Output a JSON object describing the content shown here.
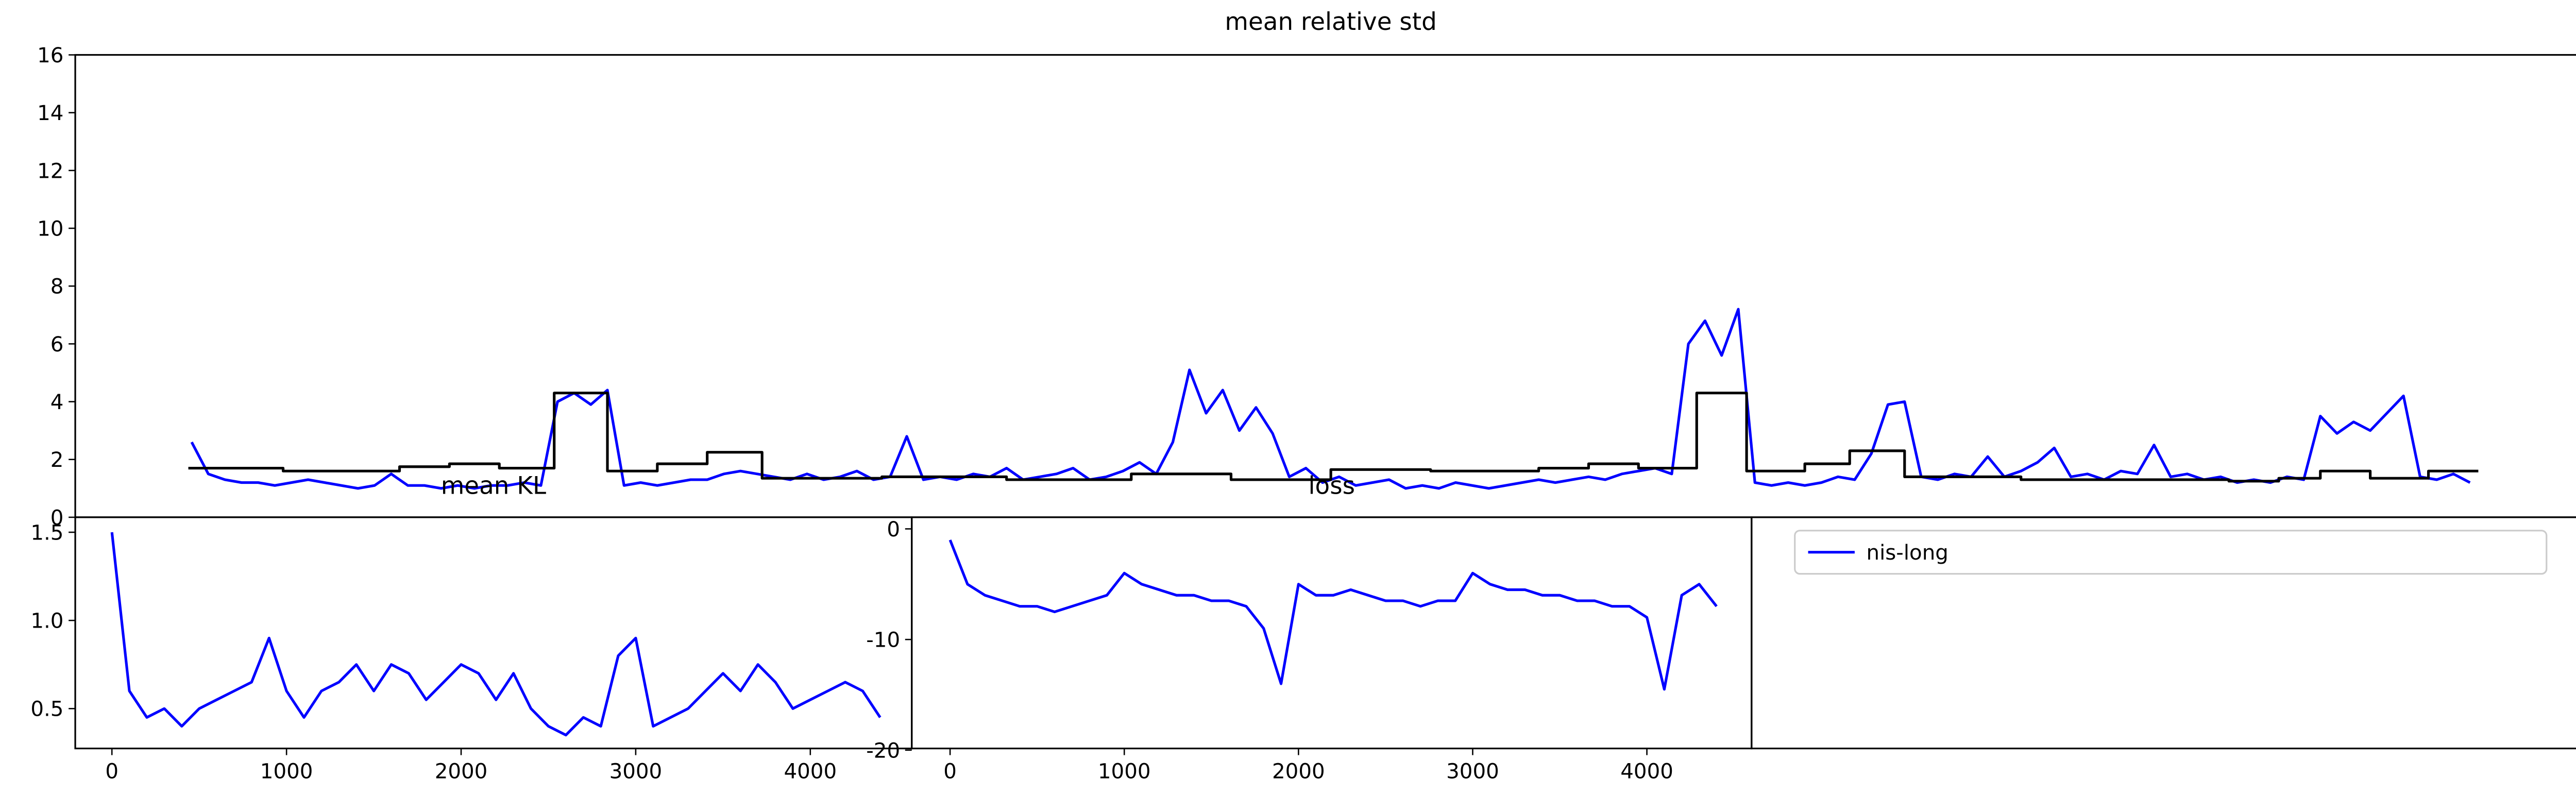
{
  "chart_data": [
    {
      "type": "line",
      "title": "mean relative std",
      "xlim": [
        0,
        151
      ],
      "ylim": [
        0,
        16
      ],
      "yticks": [
        0,
        2,
        4,
        6,
        8,
        10,
        12,
        14,
        16
      ],
      "legend": "upper left",
      "series": [
        {
          "name": "nis-long",
          "color": "#0000ff",
          "x": [
            7,
            8,
            9,
            10,
            11,
            12,
            13,
            14,
            15,
            16,
            17,
            18,
            19,
            20,
            21,
            22,
            23,
            24,
            25,
            26,
            27,
            28,
            29,
            30,
            31,
            32,
            33,
            34,
            35,
            36,
            37,
            38,
            39,
            40,
            41,
            42,
            43,
            44,
            45,
            46,
            47,
            48,
            49,
            50,
            51,
            52,
            53,
            54,
            55,
            56,
            57,
            58,
            59,
            60,
            61,
            62,
            63,
            64,
            65,
            66,
            67,
            68,
            69,
            70,
            71,
            72,
            73,
            74,
            75,
            76,
            77,
            78,
            79,
            80,
            81,
            82,
            83,
            84,
            85,
            86,
            87,
            88,
            89,
            90,
            91,
            92,
            93,
            94,
            95,
            96,
            97,
            98,
            99,
            100,
            101,
            102,
            103,
            104,
            105,
            106,
            107,
            108,
            109,
            110,
            111,
            112,
            113,
            114,
            115,
            116,
            117,
            118,
            119,
            120,
            121,
            122,
            123,
            124,
            125,
            126,
            127,
            128,
            129,
            130,
            131,
            132,
            133,
            134,
            135,
            136,
            137,
            138,
            139,
            140,
            141,
            142,
            143,
            144
          ],
          "values": [
            2.6,
            1.5,
            1.3,
            1.2,
            1.2,
            1.1,
            1.2,
            1.3,
            1.2,
            1.1,
            1.0,
            1.1,
            1.5,
            1.1,
            1.1,
            1.0,
            1.1,
            1.0,
            1.1,
            1.1,
            1.2,
            1.1,
            4.0,
            4.3,
            3.9,
            4.4,
            1.1,
            1.2,
            1.1,
            1.2,
            1.3,
            1.3,
            1.5,
            1.6,
            1.5,
            1.4,
            1.3,
            1.5,
            1.3,
            1.4,
            1.6,
            1.3,
            1.4,
            2.8,
            1.3,
            1.4,
            1.3,
            1.5,
            1.4,
            1.7,
            1.3,
            1.4,
            1.5,
            1.7,
            1.3,
            1.4,
            1.6,
            1.9,
            1.5,
            2.6,
            5.1,
            3.6,
            4.4,
            3.0,
            3.8,
            2.9,
            1.4,
            1.7,
            1.2,
            1.4,
            1.1,
            1.2,
            1.3,
            1.0,
            1.1,
            1.0,
            1.2,
            1.1,
            1.0,
            1.1,
            1.2,
            1.3,
            1.2,
            1.3,
            1.4,
            1.3,
            1.5,
            1.6,
            1.7,
            1.5,
            6.0,
            6.8,
            5.6,
            7.2,
            1.2,
            1.1,
            1.2,
            1.1,
            1.2,
            1.4,
            1.3,
            2.2,
            3.9,
            4.0,
            1.4,
            1.3,
            1.5,
            1.4,
            2.1,
            1.4,
            1.6,
            1.9,
            2.4,
            1.4,
            1.5,
            1.3,
            1.6,
            1.5,
            2.5,
            1.4,
            1.5,
            1.3,
            1.4,
            1.2,
            1.3,
            1.2,
            1.4,
            1.3,
            3.5,
            2.9,
            3.3,
            3.0,
            3.6,
            4.2,
            1.4,
            1.3,
            1.5,
            1.2
          ]
        },
        {
          "color": "#000000",
          "step": "post",
          "x": [
            6.8,
            12.5,
            19.5,
            22.5,
            25.5,
            28.8,
            32,
            35,
            38,
            41.3,
            48.5,
            56,
            63.5,
            69.5,
            75.5,
            81.5,
            88,
            91,
            94,
            97.5,
            100.5,
            104,
            106.7,
            110,
            117,
            129.5,
            132.5,
            135,
            138,
            141.5,
            144.5
          ],
          "values": [
            1.7,
            1.6,
            1.75,
            1.85,
            1.7,
            4.3,
            1.6,
            1.85,
            2.25,
            1.35,
            1.4,
            1.3,
            1.5,
            1.3,
            1.65,
            1.6,
            1.7,
            1.85,
            1.7,
            4.3,
            1.6,
            1.85,
            2.3,
            1.4,
            1.3,
            1.25,
            1.35,
            1.6,
            1.35,
            1.6,
            1.6
          ]
        }
      ]
    },
    {
      "type": "line",
      "title": "mean KL",
      "xlim": [
        -210,
        4581
      ],
      "ylim": [
        0.274,
        1.585
      ],
      "xticks": [
        0,
        1000,
        2000,
        3000,
        4000
      ],
      "yticks": [
        {
          "value": 0.5,
          "label": "0.5"
        },
        {
          "value": 1.0,
          "label": "1.0"
        },
        {
          "value": 1.5,
          "label": "1.5"
        }
      ],
      "x": [
        0,
        100,
        200,
        300,
        400,
        500,
        600,
        700,
        800,
        900,
        1000,
        1100,
        1200,
        1300,
        1400,
        1500,
        1600,
        1700,
        1800,
        1900,
        2000,
        2100,
        2200,
        2300,
        2400,
        2500,
        2600,
        2700,
        2800,
        2900,
        3000,
        3100,
        3200,
        3300,
        3400,
        3500,
        3600,
        3700,
        3800,
        3900,
        4000,
        4100,
        4200,
        4300,
        4400
      ],
      "series": [
        {
          "color": "#0000ff",
          "values": [
            1.5,
            0.6,
            0.45,
            0.5,
            0.4,
            0.5,
            0.55,
            0.6,
            0.65,
            0.9,
            0.6,
            0.45,
            0.6,
            0.65,
            0.75,
            0.6,
            0.75,
            0.7,
            0.55,
            0.65,
            0.75,
            0.7,
            0.55,
            0.7,
            0.5,
            0.4,
            0.35,
            0.45,
            0.4,
            0.8,
            0.9,
            0.4,
            0.45,
            0.5,
            0.6,
            0.7,
            0.6,
            0.75,
            0.65,
            0.5,
            0.55,
            0.6,
            0.65,
            0.6,
            0.45
          ]
        }
      ]
    },
    {
      "type": "line",
      "title": "loss",
      "xlim": [
        -220,
        4601
      ],
      "ylim": [
        -19.85,
        1.05
      ],
      "xticks": [
        0,
        1000,
        2000,
        3000,
        4000
      ],
      "yticks": [
        0,
        -10,
        -20
      ],
      "x": [
        0,
        100,
        200,
        300,
        400,
        500,
        600,
        700,
        800,
        900,
        1000,
        1100,
        1200,
        1300,
        1400,
        1500,
        1600,
        1700,
        1800,
        1900,
        2000,
        2100,
        2200,
        2300,
        2400,
        2500,
        2600,
        2700,
        2800,
        2900,
        3000,
        3100,
        3200,
        3300,
        3400,
        3500,
        3600,
        3700,
        3800,
        3900,
        4000,
        4100,
        4200,
        4300,
        4400
      ],
      "series": [
        {
          "color": "#0000ff",
          "values": [
            -1,
            -5,
            -6,
            -6.5,
            -7,
            -7,
            -7.5,
            -7,
            -6.5,
            -6,
            -4,
            -5,
            -5.5,
            -6,
            -6,
            -6.5,
            -6.5,
            -7,
            -9,
            -14,
            -5,
            -6,
            -6,
            -5.5,
            -6,
            -6.5,
            -6.5,
            -7,
            -6.5,
            -6.5,
            -4,
            -5,
            -5.5,
            -5.5,
            -6,
            -6,
            -6.5,
            -6.5,
            -7,
            -7,
            -8,
            -14.5,
            -6,
            -5,
            -7
          ]
        }
      ]
    }
  ]
}
